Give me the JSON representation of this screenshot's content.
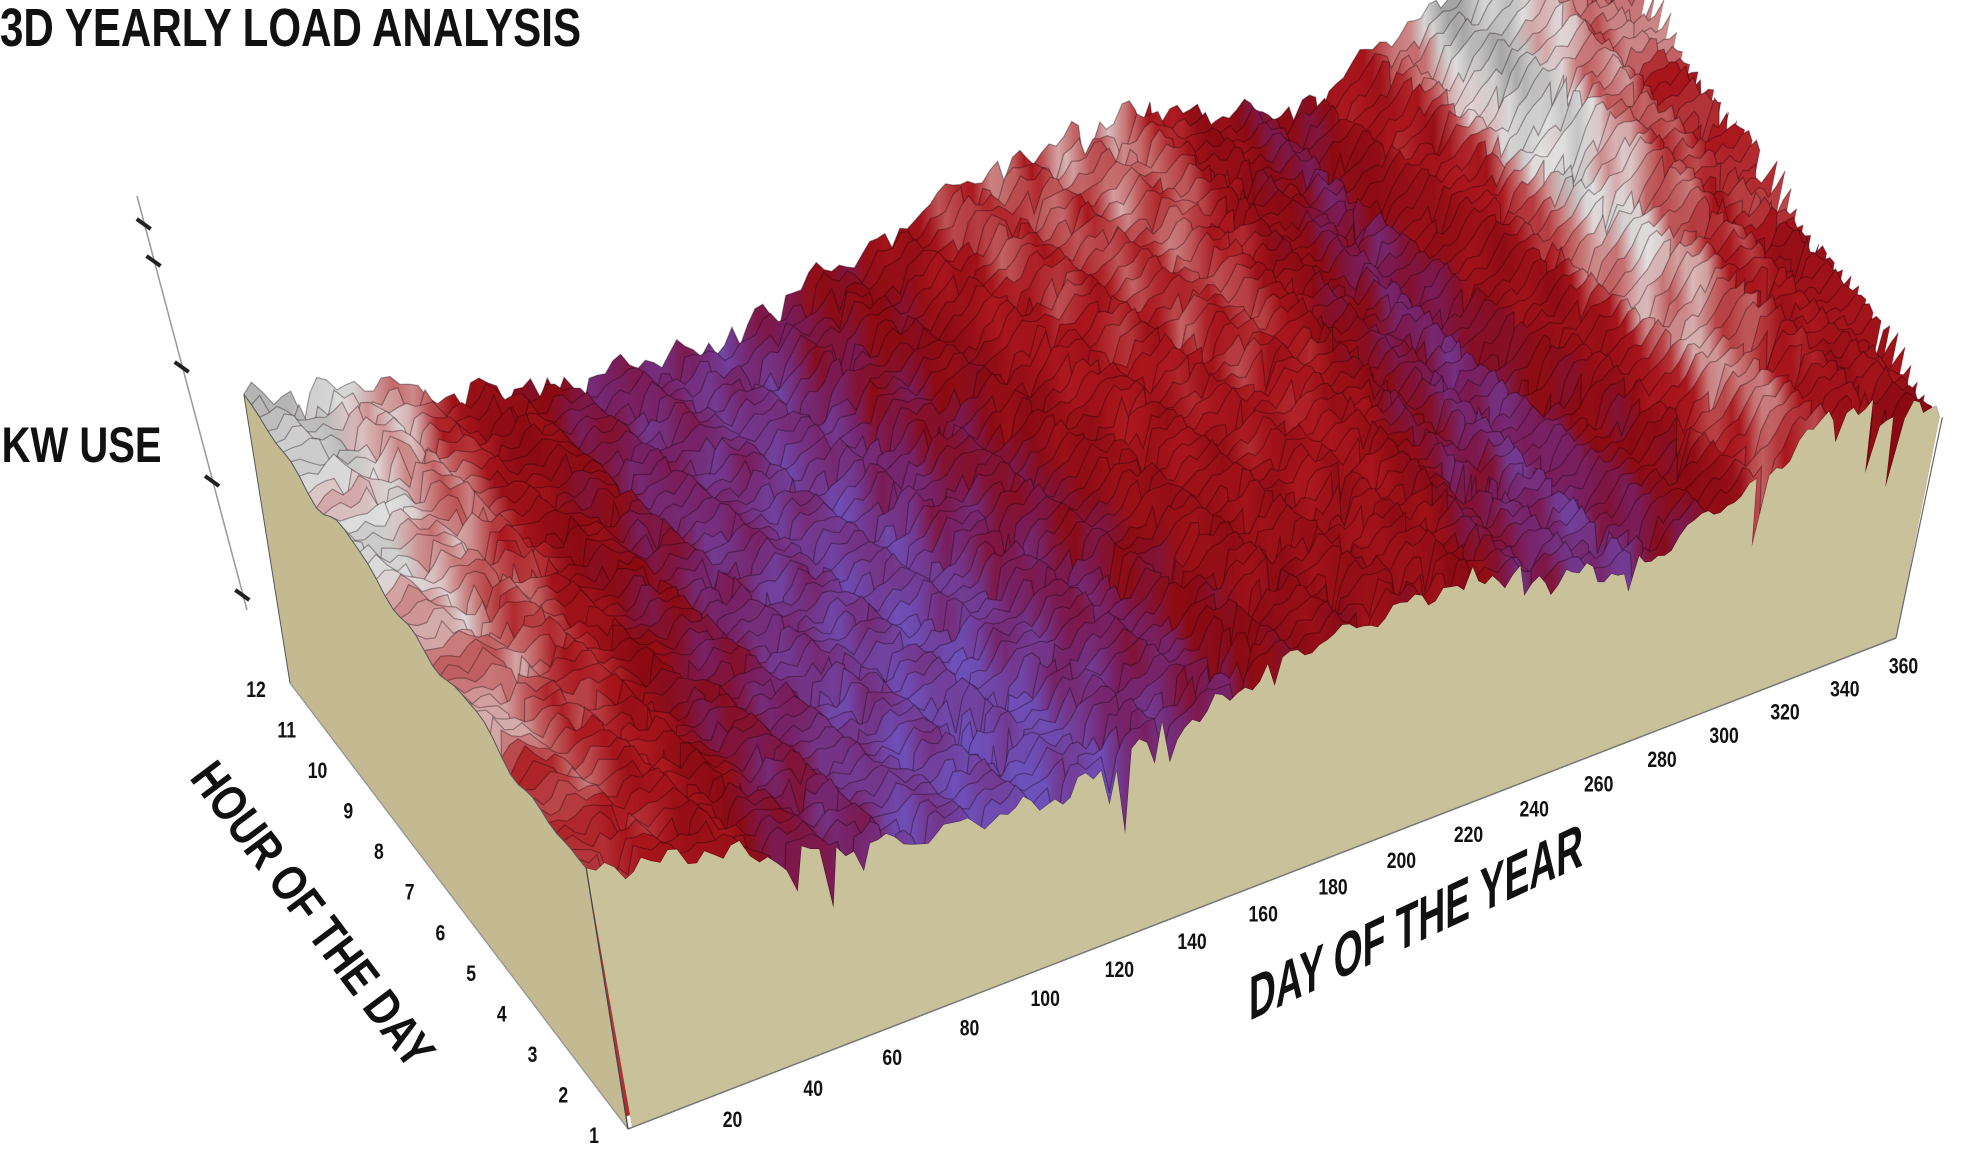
{
  "chart_data": {
    "type": "surface",
    "title": "3D YEARLY LOAD ANALYSIS",
    "xlabel": "DAY OF THE YEAR",
    "ylabel": "HOUR OF THE DAY",
    "zlabel": "KW USE",
    "x_ticks": [
      "20",
      "40",
      "60",
      "80",
      "100",
      "120",
      "140",
      "160",
      "180",
      "200",
      "220",
      "240",
      "260",
      "280",
      "300",
      "320",
      "340",
      "360"
    ],
    "y_ticks": [
      "1",
      "2",
      "3",
      "4",
      "5",
      "6",
      "7",
      "8",
      "9",
      "10",
      "11",
      "12"
    ],
    "xlim": [
      0,
      365
    ],
    "ylim": [
      1,
      12
    ],
    "grid": false,
    "relative_load": {
      "days": [
        0,
        20,
        50,
        80,
        110,
        140,
        180,
        220,
        250,
        270,
        300,
        330,
        350,
        365
      ],
      "values": [
        0.95,
        0.85,
        0.6,
        0.45,
        0.4,
        0.55,
        0.75,
        0.8,
        0.6,
        0.5,
        0.7,
        1.0,
        0.85,
        0.8
      ]
    },
    "colors": {
      "low": "#5a55c8",
      "mid": "#8a0a12",
      "high": "#e2e2e2",
      "base_face": "#c9c19a"
    }
  }
}
